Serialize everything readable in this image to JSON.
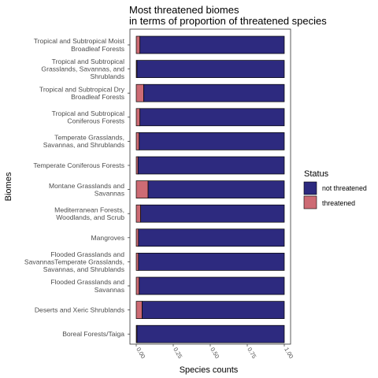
{
  "chart_data": {
    "type": "bar",
    "orientation": "horizontal",
    "stacked": true,
    "title": [
      "Most threatened biomes",
      "in terms of proportion of threatened species"
    ],
    "xlabel": "Species counts",
    "ylabel": "Biomes",
    "xlim": [
      0,
      1
    ],
    "xticks": [
      "0.00",
      "0.25",
      "0.50",
      "0.75",
      "1.00"
    ],
    "xtick_values": [
      0,
      0.25,
      0.5,
      0.75,
      1.0
    ],
    "grid": false,
    "categories": [
      [
        "Tropical and Subtropical Moist",
        "Broadleaf Forests"
      ],
      [
        "Tropical and Subtropical",
        "Grasslands, Savannas, and",
        "Shrublands"
      ],
      [
        "Tropical and Subtropical Dry",
        "Broadleaf Forests"
      ],
      [
        "Tropical and Subtropical",
        "Coniferous Forests"
      ],
      [
        "Temperate Grasslands,",
        "Savannas, and Shrublands"
      ],
      [
        "Temperate Coniferous Forests"
      ],
      [
        "Montane Grasslands and",
        "Savannas"
      ],
      [
        "Mediterranean Forests,",
        "Woodlands, and Scrub"
      ],
      [
        "Mangroves"
      ],
      [
        "Flooded Grasslands and",
        "SavannasTemperate Grasslands,",
        "Savannas, and Shrublands"
      ],
      [
        "Flooded Grasslands and",
        "Savannas"
      ],
      [
        "Deserts and Xeric Shrublands"
      ],
      [
        "Boreal Forests/Taiga"
      ]
    ],
    "series": [
      {
        "name": "threatened",
        "color": "#cd6b74",
        "values": [
          0.025,
          0.005,
          0.05,
          0.025,
          0.02,
          0.012,
          0.08,
          0.03,
          0.015,
          0.015,
          0.02,
          0.04,
          0.005
        ]
      },
      {
        "name": "not threatened",
        "color": "#2d2a7f",
        "values": [
          0.975,
          0.995,
          0.95,
          0.975,
          0.98,
          0.988,
          0.92,
          0.97,
          0.985,
          0.985,
          0.98,
          0.96,
          0.995
        ]
      }
    ],
    "legend": {
      "title": "Status",
      "position": "right",
      "entries": [
        "not threatened",
        "threatened"
      ]
    }
  }
}
